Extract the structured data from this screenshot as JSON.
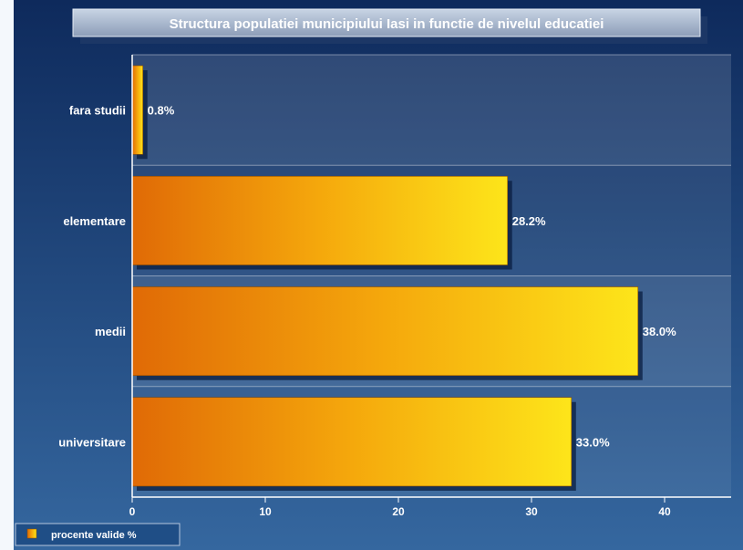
{
  "chart_data": {
    "type": "bar",
    "orientation": "horizontal",
    "title": "Structura populatiei municipiului Iasi in functie de nivelul educatiei",
    "categories": [
      "fara studii",
      "elementare",
      "medii",
      "universitare"
    ],
    "values": [
      0.8,
      28.2,
      38.0,
      33.0
    ],
    "value_labels": [
      "0.8%",
      "28.2%",
      "38.0%",
      "33.0%"
    ],
    "xlim": [
      0,
      45
    ],
    "xticks": [
      0,
      10,
      20,
      30,
      40
    ],
    "xtick_labels": [
      "0",
      "10",
      "20",
      "30",
      "40"
    ],
    "grid": true,
    "legend": {
      "label": "procente valide %",
      "position": "bottom-left"
    },
    "colors": {
      "bar_start": "#e06a06",
      "bar_mid": "#f5a80c",
      "bar_end": "#fde51a",
      "background_top": "#0e2a5c",
      "background_bottom": "#35679f",
      "text": "#ffffff"
    }
  }
}
